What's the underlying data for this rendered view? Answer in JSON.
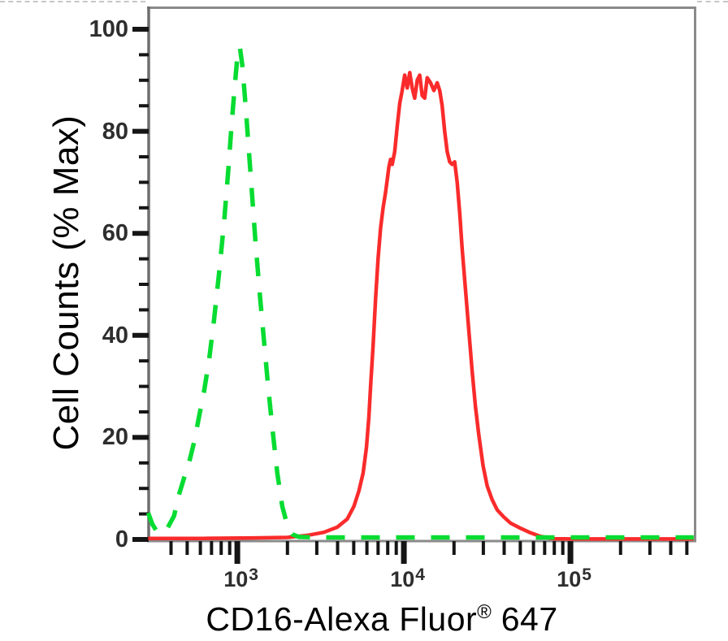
{
  "figure": {
    "ylabel": "Cell Counts (% Max)",
    "xlabel_main": "CD16-Alexa Fluor",
    "xlabel_sup": "®",
    "xlabel_suffix": " 647"
  },
  "chart_data": {
    "type": "line",
    "title": "",
    "xlabel": "CD16-Alexa Fluor® 647",
    "ylabel": "Cell Counts (% Max)",
    "x_scale": "log10",
    "x_range_log10": [
      2.463,
      5.746
    ],
    "ylim": [
      0,
      105
    ],
    "grid": false,
    "legend": "none",
    "y_axis": {
      "major_tick_values": [
        0,
        20,
        40,
        60,
        80,
        100
      ],
      "tick_labels": [
        "0",
        "20",
        "40",
        "60",
        "80",
        "100"
      ],
      "minor_tick_step": 5
    },
    "x_axis": {
      "major_ticks": [
        {
          "base": "10",
          "exp": "3",
          "log10": 3
        },
        {
          "base": "10",
          "exp": "4",
          "log10": 4
        },
        {
          "base": "10",
          "exp": "5",
          "log10": 5
        }
      ],
      "minor_tick_mantissas": [
        2,
        3,
        4,
        5,
        6,
        7,
        8,
        9
      ]
    },
    "series": [
      {
        "name": "red-solid-cd16-stained",
        "color": "#FA2B2B",
        "style": "solid",
        "peak": {
          "x_approx": 12000,
          "y_percent": 91.5
        },
        "points_log10x": [
          [
            2.465,
            0.2
          ],
          [
            2.8,
            0.2
          ],
          [
            3.1,
            0.3
          ],
          [
            3.3,
            0.4
          ],
          [
            3.42,
            0.8
          ],
          [
            3.52,
            1.4
          ],
          [
            3.6,
            2.4
          ],
          [
            3.66,
            4
          ],
          [
            3.7,
            6.5
          ],
          [
            3.73,
            9.5
          ],
          [
            3.755,
            13
          ],
          [
            3.775,
            18
          ],
          [
            3.79,
            24
          ],
          [
            3.8,
            30
          ],
          [
            3.815,
            38
          ],
          [
            3.83,
            47
          ],
          [
            3.845,
            55
          ],
          [
            3.86,
            61
          ],
          [
            3.875,
            65
          ],
          [
            3.89,
            68
          ],
          [
            3.9,
            70.5
          ],
          [
            3.91,
            73
          ],
          [
            3.92,
            74.5
          ],
          [
            3.93,
            73.5
          ],
          [
            3.945,
            76
          ],
          [
            3.96,
            81
          ],
          [
            3.975,
            85.5
          ],
          [
            3.99,
            88
          ],
          [
            4.005,
            91
          ],
          [
            4.02,
            88.5
          ],
          [
            4.035,
            91.5
          ],
          [
            4.05,
            88.5
          ],
          [
            4.065,
            86.5
          ],
          [
            4.08,
            90
          ],
          [
            4.095,
            91
          ],
          [
            4.11,
            87
          ],
          [
            4.125,
            86.5
          ],
          [
            4.14,
            90.5
          ],
          [
            4.16,
            89.5
          ],
          [
            4.18,
            88
          ],
          [
            4.2,
            89.5
          ],
          [
            4.215,
            88
          ],
          [
            4.23,
            85
          ],
          [
            4.245,
            80
          ],
          [
            4.26,
            76
          ],
          [
            4.275,
            74
          ],
          [
            4.29,
            73.5
          ],
          [
            4.305,
            74
          ],
          [
            4.32,
            70
          ],
          [
            4.335,
            64
          ],
          [
            4.35,
            57
          ],
          [
            4.37,
            49
          ],
          [
            4.39,
            41
          ],
          [
            4.41,
            33
          ],
          [
            4.43,
            26
          ],
          [
            4.45,
            20.5
          ],
          [
            4.475,
            14.5
          ],
          [
            4.5,
            10.5
          ],
          [
            4.53,
            7.8
          ],
          [
            4.56,
            5.8
          ],
          [
            4.6,
            4.4
          ],
          [
            4.64,
            3.2
          ],
          [
            4.7,
            2.2
          ],
          [
            4.76,
            1.3
          ],
          [
            4.82,
            0.6
          ],
          [
            4.9,
            0.15
          ],
          [
            5.0,
            0.1
          ],
          [
            5.2,
            0.1
          ],
          [
            5.5,
            0.1
          ],
          [
            5.74,
            0.1
          ]
        ]
      },
      {
        "name": "green-dashed-control",
        "color": "#07DC32",
        "style": "dashed",
        "peak": {
          "x_approx": 1000,
          "y_percent": 96.5
        },
        "points_log10x": [
          [
            2.465,
            5.2
          ],
          [
            2.49,
            3.0
          ],
          [
            2.52,
            1.4
          ],
          [
            2.55,
            1.2
          ],
          [
            2.58,
            2.2
          ],
          [
            2.62,
            4.6
          ],
          [
            2.65,
            8.8
          ],
          [
            2.68,
            12
          ],
          [
            2.71,
            15
          ],
          [
            2.74,
            19
          ],
          [
            2.77,
            24
          ],
          [
            2.8,
            29
          ],
          [
            2.83,
            35
          ],
          [
            2.86,
            43
          ],
          [
            2.89,
            52
          ],
          [
            2.92,
            62
          ],
          [
            2.945,
            72
          ],
          [
            2.965,
            81
          ],
          [
            2.985,
            89
          ],
          [
            3.0,
            94.5
          ],
          [
            3.015,
            96.5
          ],
          [
            3.03,
            93
          ],
          [
            3.05,
            85
          ],
          [
            3.07,
            76
          ],
          [
            3.09,
            67
          ],
          [
            3.11,
            58
          ],
          [
            3.135,
            48
          ],
          [
            3.16,
            39
          ],
          [
            3.185,
            30
          ],
          [
            3.21,
            22
          ],
          [
            3.24,
            13
          ],
          [
            3.27,
            6.5
          ],
          [
            3.3,
            2.8
          ],
          [
            3.33,
            1.0
          ],
          [
            3.37,
            0.5
          ],
          [
            3.5,
            0.4
          ],
          [
            4.0,
            0.4
          ],
          [
            4.5,
            0.4
          ],
          [
            5.0,
            0.4
          ],
          [
            5.4,
            0.4
          ],
          [
            5.74,
            0.4
          ]
        ]
      }
    ],
    "colors": {
      "axis_box": "#8a8a8a",
      "axis_left": "#6e6e6e",
      "ticks": "#151515",
      "red_series": "#FA2B2B",
      "green_series": "#07DC32"
    }
  }
}
